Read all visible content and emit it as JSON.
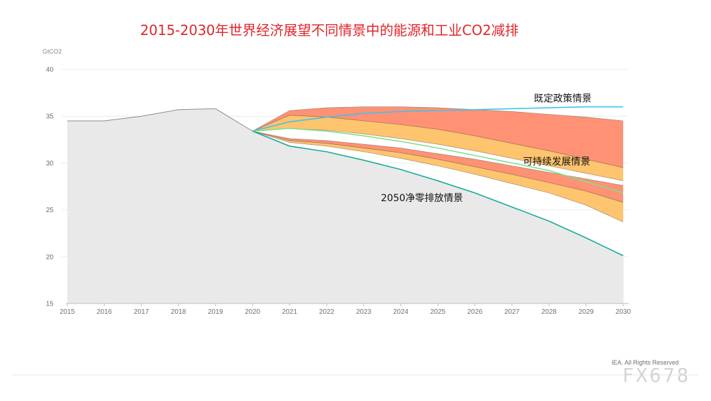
{
  "chart_data": {
    "type": "area",
    "title": "2015-2030年世界经济展望不同情景中的能源和工业CO2减排",
    "unit_label": "GtCO2",
    "x": [
      2015,
      2016,
      2017,
      2018,
      2019,
      2020,
      2021,
      2022,
      2023,
      2024,
      2025,
      2026,
      2027,
      2028,
      2029,
      2030
    ],
    "ylim": [
      15,
      40
    ],
    "yticks": [
      "40",
      "35",
      "30",
      "25",
      "20",
      "15"
    ],
    "historical": {
      "x": [
        2015,
        2016,
        2017,
        2018,
        2019,
        2020
      ],
      "values": [
        34.5,
        34.5,
        35.0,
        35.7,
        35.8,
        33.4
      ]
    },
    "bands": [
      {
        "color": "#ff9274",
        "x": [
          2020,
          2021,
          2022,
          2023,
          2024,
          2025,
          2026,
          2027,
          2028,
          2029,
          2030
        ],
        "upper": [
          33.4,
          35.6,
          35.9,
          36.0,
          36.0,
          35.9,
          35.7,
          35.5,
          35.2,
          34.9,
          34.5
        ],
        "lower": [
          33.4,
          35.1,
          34.9,
          34.5,
          34.1,
          33.6,
          32.9,
          32.1,
          31.3,
          30.4,
          29.5
        ]
      },
      {
        "color": "#ffc46e",
        "x": [
          2020,
          2021,
          2022,
          2023,
          2024,
          2025,
          2026,
          2027,
          2028,
          2029,
          2030
        ],
        "upper": [
          33.4,
          35.1,
          34.9,
          34.5,
          34.1,
          33.6,
          32.9,
          32.1,
          31.3,
          30.4,
          29.5
        ],
        "lower": [
          33.4,
          33.7,
          33.5,
          33.1,
          32.6,
          32.0,
          31.3,
          30.5,
          29.7,
          28.9,
          28.1
        ]
      },
      {
        "color": "#ff9274",
        "x": [
          2020,
          2021,
          2022,
          2023,
          2024,
          2025,
          2026,
          2027,
          2028,
          2029,
          2030
        ],
        "upper": [
          33.4,
          32.6,
          32.4,
          32.0,
          31.6,
          31.0,
          30.4,
          29.7,
          29.0,
          28.3,
          27.6
        ],
        "lower": [
          33.4,
          32.4,
          32.1,
          31.6,
          31.1,
          30.4,
          29.6,
          28.8,
          27.9,
          27.0,
          25.8
        ]
      },
      {
        "color": "#ffc46e",
        "x": [
          2020,
          2021,
          2022,
          2023,
          2024,
          2025,
          2026,
          2027,
          2028,
          2029,
          2030
        ],
        "upper": [
          33.4,
          32.4,
          32.1,
          31.6,
          31.1,
          30.4,
          29.6,
          28.8,
          27.9,
          27.0,
          25.8
        ],
        "lower": [
          33.4,
          32.2,
          31.8,
          31.2,
          30.5,
          29.7,
          28.8,
          27.8,
          26.8,
          25.5,
          23.7
        ]
      }
    ],
    "series": [
      {
        "name": "既定政策情景",
        "color": "#3cc3ee",
        "x": [
          2020,
          2021,
          2022,
          2023,
          2024,
          2025,
          2026,
          2027,
          2028,
          2029,
          2030
        ],
        "values": [
          33.4,
          34.4,
          34.9,
          35.3,
          35.5,
          35.6,
          35.7,
          35.8,
          35.9,
          36.0,
          36.0
        ]
      },
      {
        "name": "可持续发展情景",
        "color": "#7ee08a",
        "x": [
          2020,
          2021,
          2022,
          2023,
          2024,
          2025,
          2026,
          2027,
          2028,
          2029,
          2030
        ],
        "values": [
          33.4,
          33.7,
          33.4,
          32.9,
          32.3,
          31.6,
          30.8,
          30.0,
          29.2,
          28.0,
          26.8
        ]
      },
      {
        "name": "2050净零排放情景",
        "color": "#17ac9a",
        "x": [
          2020,
          2021,
          2022,
          2023,
          2024,
          2025,
          2026,
          2027,
          2028,
          2029,
          2030
        ],
        "values": [
          33.4,
          31.8,
          31.2,
          30.3,
          29.3,
          28.1,
          26.8,
          25.3,
          23.8,
          22.0,
          20.1
        ]
      }
    ],
    "credit": "IEA. All Rights Reserved",
    "grid": true
  },
  "watermark": "FX678"
}
